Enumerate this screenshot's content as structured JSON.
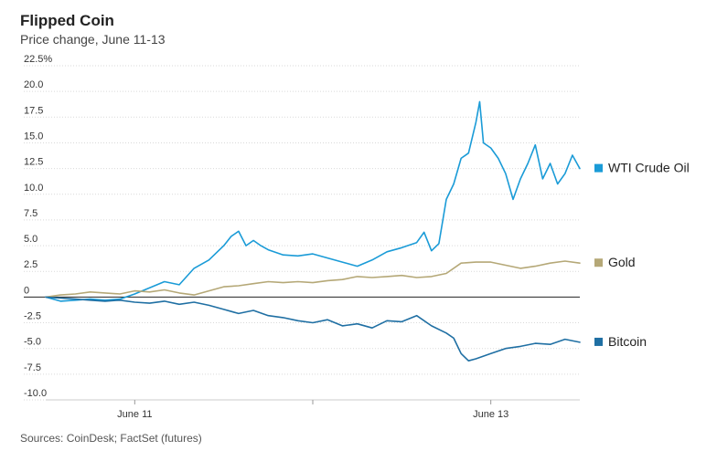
{
  "chart_data": {
    "type": "line",
    "title": "Flipped Coin",
    "subtitle": "Price change, June 11-13",
    "source": "Sources: CoinDesk; FactSet (futures)",
    "ylim": [
      -10,
      22.5
    ],
    "yticks": [
      {
        "value": 22.5,
        "label": "22.5%"
      },
      {
        "value": 20,
        "label": "20.0"
      },
      {
        "value": 17.5,
        "label": "17.5"
      },
      {
        "value": 15,
        "label": "15.0"
      },
      {
        "value": 12.5,
        "label": "12.5"
      },
      {
        "value": 10,
        "label": "10.0"
      },
      {
        "value": 7.5,
        "label": "7.5"
      },
      {
        "value": 5,
        "label": "5.0"
      },
      {
        "value": 2.5,
        "label": "2.5"
      },
      {
        "value": 0,
        "label": "0"
      },
      {
        "value": -2.5,
        "label": "-2.5"
      },
      {
        "value": -5,
        "label": "-5.0"
      },
      {
        "value": -7.5,
        "label": "-7.5"
      },
      {
        "value": -10,
        "label": "-10.0"
      }
    ],
    "xlim": [
      0,
      72
    ],
    "xticks": [
      {
        "value": 12,
        "label": "June 11"
      },
      {
        "value": 36,
        "label": ""
      },
      {
        "value": 60,
        "label": "June 13"
      }
    ],
    "grid": true,
    "legend_placement": "right",
    "series": [
      {
        "name": "WTI Crude Oil",
        "color": "#1a9bd7",
        "x": [
          0,
          2,
          4,
          6,
          8,
          10,
          12,
          14,
          16,
          18,
          20,
          22,
          24,
          25,
          26,
          27,
          28,
          29,
          30,
          32,
          34,
          36,
          38,
          40,
          42,
          44,
          46,
          48,
          50,
          51,
          52,
          53,
          54,
          55,
          56,
          57,
          58,
          58.5,
          59,
          60,
          61,
          62,
          63,
          64,
          65,
          66,
          67,
          68,
          69,
          70,
          71,
          72
        ],
        "y": [
          0,
          -0.4,
          -0.3,
          -0.2,
          -0.3,
          -0.2,
          0.3,
          0.9,
          1.5,
          1.2,
          2.8,
          3.6,
          5.0,
          5.9,
          6.4,
          5.0,
          5.5,
          5.0,
          4.6,
          4.1,
          4.0,
          4.2,
          3.8,
          3.4,
          3.0,
          3.6,
          4.4,
          4.8,
          5.3,
          6.3,
          4.5,
          5.2,
          9.5,
          11.0,
          13.5,
          14.0,
          17.0,
          19.0,
          15.0,
          14.5,
          13.5,
          12.0,
          9.5,
          11.5,
          13.0,
          14.8,
          11.5,
          13.0,
          11.0,
          12.0,
          13.8,
          12.5
        ]
      },
      {
        "name": "Gold",
        "color": "#b5a877",
        "x": [
          0,
          2,
          4,
          6,
          8,
          10,
          12,
          14,
          16,
          18,
          20,
          22,
          24,
          26,
          28,
          30,
          32,
          34,
          36,
          38,
          40,
          42,
          44,
          46,
          48,
          50,
          52,
          54,
          56,
          58,
          60,
          62,
          64,
          66,
          68,
          70,
          72
        ],
        "y": [
          0,
          0.2,
          0.3,
          0.5,
          0.4,
          0.3,
          0.6,
          0.5,
          0.7,
          0.4,
          0.2,
          0.6,
          1.0,
          1.1,
          1.3,
          1.5,
          1.4,
          1.5,
          1.4,
          1.6,
          1.7,
          2.0,
          1.9,
          2.0,
          2.1,
          1.9,
          2.0,
          2.3,
          3.3,
          3.4,
          3.4,
          3.1,
          2.8,
          3.0,
          3.3,
          3.5,
          3.3
        ]
      },
      {
        "name": "Bitcoin",
        "color": "#1f6fa3",
        "x": [
          0,
          2,
          4,
          6,
          8,
          10,
          12,
          14,
          16,
          18,
          20,
          22,
          24,
          26,
          28,
          30,
          32,
          34,
          36,
          38,
          40,
          42,
          44,
          46,
          48,
          50,
          52,
          54,
          55,
          56,
          57,
          58,
          60,
          62,
          64,
          66,
          68,
          70,
          72
        ],
        "y": [
          0,
          -0.1,
          -0.2,
          -0.3,
          -0.4,
          -0.3,
          -0.5,
          -0.6,
          -0.4,
          -0.7,
          -0.5,
          -0.8,
          -1.2,
          -1.6,
          -1.3,
          -1.8,
          -2.0,
          -2.3,
          -2.5,
          -2.2,
          -2.8,
          -2.6,
          -3.0,
          -2.3,
          -2.4,
          -1.8,
          -2.8,
          -3.5,
          -4.0,
          -5.5,
          -6.2,
          -6.0,
          -5.5,
          -5.0,
          -4.8,
          -4.5,
          -4.6,
          -4.1,
          -4.4
        ]
      }
    ]
  }
}
